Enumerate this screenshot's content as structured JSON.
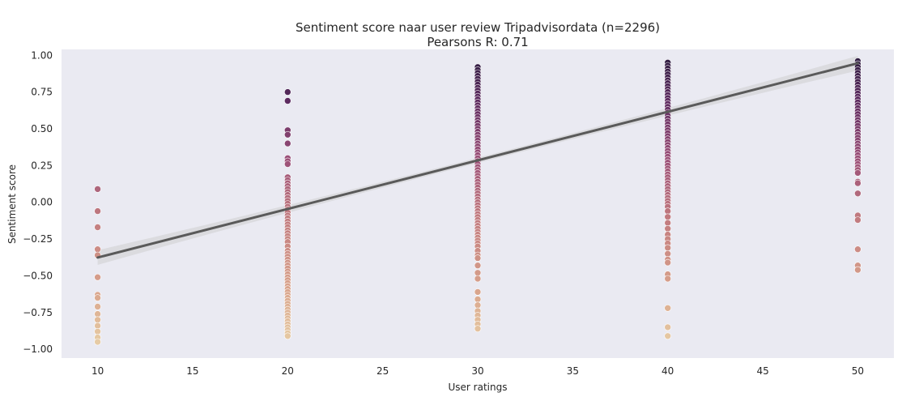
{
  "chart_data": {
    "type": "scatter",
    "title": "Sentiment score naar user review Tripadvisordata  (n=2296)",
    "subtitle": "Pearsons R: 0.71",
    "xlabel": "User ratings",
    "ylabel": "Sentiment score",
    "xlim": [
      8.1,
      51.9
    ],
    "ylim": [
      -1.06,
      1.04
    ],
    "x_ticks": [
      10,
      15,
      20,
      25,
      30,
      35,
      40,
      45,
      50
    ],
    "x_tick_labels": [
      "10",
      "15",
      "20",
      "25",
      "30",
      "35",
      "40",
      "45",
      "50"
    ],
    "y_ticks": [
      1.0,
      0.75,
      0.5,
      0.25,
      0.0,
      -0.25,
      -0.5,
      -0.75,
      -1.0
    ],
    "y_tick_labels": [
      "1.00",
      "0.75",
      "0.50",
      "0.25",
      "0.00",
      "−0.25",
      "−0.50",
      "−0.75",
      "−1.00"
    ],
    "grid": false,
    "legend": "none",
    "colors": {
      "background": "#eaeaf2",
      "regression_line": "#5a5a5a",
      "confidence_band": "#d8d8dc",
      "palette_low": "#e8d1a8",
      "palette_high": "#2a1b3d"
    },
    "points": [
      {
        "x": 10,
        "y": 0.09
      },
      {
        "x": 10,
        "y": -0.06
      },
      {
        "x": 10,
        "y": -0.17
      },
      {
        "x": 10,
        "y": -0.32
      },
      {
        "x": 10,
        "y": -0.36
      },
      {
        "x": 10,
        "y": -0.51
      },
      {
        "x": 10,
        "y": -0.63
      },
      {
        "x": 10,
        "y": -0.65
      },
      {
        "x": 10,
        "y": -0.71
      },
      {
        "x": 10,
        "y": -0.76
      },
      {
        "x": 10,
        "y": -0.8
      },
      {
        "x": 10,
        "y": -0.84
      },
      {
        "x": 10,
        "y": -0.88
      },
      {
        "x": 10,
        "y": -0.92
      },
      {
        "x": 10,
        "y": -0.95
      },
      {
        "x": 20,
        "y": 0.75
      },
      {
        "x": 20,
        "y": 0.69
      },
      {
        "x": 20,
        "y": 0.49
      },
      {
        "x": 20,
        "y": 0.46
      },
      {
        "x": 20,
        "y": 0.4
      },
      {
        "x": 20,
        "y": 0.3
      },
      {
        "x": 20,
        "y": 0.28
      },
      {
        "x": 20,
        "y": 0.26
      },
      {
        "x": 20,
        "y": 0.17
      },
      {
        "x": 20,
        "y": 0.15
      },
      {
        "x": 20,
        "y": 0.13
      },
      {
        "x": 20,
        "y": 0.11
      },
      {
        "x": 20,
        "y": 0.09
      },
      {
        "x": 20,
        "y": 0.07
      },
      {
        "x": 20,
        "y": 0.05
      },
      {
        "x": 20,
        "y": 0.03
      },
      {
        "x": 20,
        "y": 0.01
      },
      {
        "x": 20,
        "y": -0.01
      },
      {
        "x": 20,
        "y": -0.03
      },
      {
        "x": 20,
        "y": -0.05
      },
      {
        "x": 20,
        "y": -0.07
      },
      {
        "x": 20,
        "y": -0.09
      },
      {
        "x": 20,
        "y": -0.11
      },
      {
        "x": 20,
        "y": -0.13
      },
      {
        "x": 20,
        "y": -0.15
      },
      {
        "x": 20,
        "y": -0.17
      },
      {
        "x": 20,
        "y": -0.19
      },
      {
        "x": 20,
        "y": -0.21
      },
      {
        "x": 20,
        "y": -0.23
      },
      {
        "x": 20,
        "y": -0.25
      },
      {
        "x": 20,
        "y": -0.27
      },
      {
        "x": 20,
        "y": -0.3
      },
      {
        "x": 20,
        "y": -0.33
      },
      {
        "x": 20,
        "y": -0.35
      },
      {
        "x": 20,
        "y": -0.37
      },
      {
        "x": 20,
        "y": -0.39
      },
      {
        "x": 20,
        "y": -0.41
      },
      {
        "x": 20,
        "y": -0.43
      },
      {
        "x": 20,
        "y": -0.45
      },
      {
        "x": 20,
        "y": -0.47
      },
      {
        "x": 20,
        "y": -0.49
      },
      {
        "x": 20,
        "y": -0.51
      },
      {
        "x": 20,
        "y": -0.53
      },
      {
        "x": 20,
        "y": -0.55
      },
      {
        "x": 20,
        "y": -0.57
      },
      {
        "x": 20,
        "y": -0.59
      },
      {
        "x": 20,
        "y": -0.61
      },
      {
        "x": 20,
        "y": -0.63
      },
      {
        "x": 20,
        "y": -0.65
      },
      {
        "x": 20,
        "y": -0.67
      },
      {
        "x": 20,
        "y": -0.69
      },
      {
        "x": 20,
        "y": -0.71
      },
      {
        "x": 20,
        "y": -0.73
      },
      {
        "x": 20,
        "y": -0.75
      },
      {
        "x": 20,
        "y": -0.77
      },
      {
        "x": 20,
        "y": -0.79
      },
      {
        "x": 20,
        "y": -0.81
      },
      {
        "x": 20,
        "y": -0.83
      },
      {
        "x": 20,
        "y": -0.85
      },
      {
        "x": 20,
        "y": -0.87
      },
      {
        "x": 20,
        "y": -0.89
      },
      {
        "x": 20,
        "y": -0.91
      },
      {
        "x": 30,
        "y": 0.92
      },
      {
        "x": 30,
        "y": 0.9
      },
      {
        "x": 30,
        "y": 0.88
      },
      {
        "x": 30,
        "y": 0.86
      },
      {
        "x": 30,
        "y": 0.84
      },
      {
        "x": 30,
        "y": 0.82
      },
      {
        "x": 30,
        "y": 0.8
      },
      {
        "x": 30,
        "y": 0.78
      },
      {
        "x": 30,
        "y": 0.76
      },
      {
        "x": 30,
        "y": 0.74
      },
      {
        "x": 30,
        "y": 0.72
      },
      {
        "x": 30,
        "y": 0.7
      },
      {
        "x": 30,
        "y": 0.68
      },
      {
        "x": 30,
        "y": 0.66
      },
      {
        "x": 30,
        "y": 0.64
      },
      {
        "x": 30,
        "y": 0.62
      },
      {
        "x": 30,
        "y": 0.6
      },
      {
        "x": 30,
        "y": 0.58
      },
      {
        "x": 30,
        "y": 0.56
      },
      {
        "x": 30,
        "y": 0.54
      },
      {
        "x": 30,
        "y": 0.52
      },
      {
        "x": 30,
        "y": 0.5
      },
      {
        "x": 30,
        "y": 0.48
      },
      {
        "x": 30,
        "y": 0.46
      },
      {
        "x": 30,
        "y": 0.44
      },
      {
        "x": 30,
        "y": 0.42
      },
      {
        "x": 30,
        "y": 0.4
      },
      {
        "x": 30,
        "y": 0.38
      },
      {
        "x": 30,
        "y": 0.36
      },
      {
        "x": 30,
        "y": 0.34
      },
      {
        "x": 30,
        "y": 0.32
      },
      {
        "x": 30,
        "y": 0.3
      },
      {
        "x": 30,
        "y": 0.28
      },
      {
        "x": 30,
        "y": 0.26
      },
      {
        "x": 30,
        "y": 0.24
      },
      {
        "x": 30,
        "y": 0.22
      },
      {
        "x": 30,
        "y": 0.2
      },
      {
        "x": 30,
        "y": 0.18
      },
      {
        "x": 30,
        "y": 0.16
      },
      {
        "x": 30,
        "y": 0.14
      },
      {
        "x": 30,
        "y": 0.12
      },
      {
        "x": 30,
        "y": 0.1
      },
      {
        "x": 30,
        "y": 0.08
      },
      {
        "x": 30,
        "y": 0.06
      },
      {
        "x": 30,
        "y": 0.04
      },
      {
        "x": 30,
        "y": 0.02
      },
      {
        "x": 30,
        "y": 0.0
      },
      {
        "x": 30,
        "y": -0.02
      },
      {
        "x": 30,
        "y": -0.04
      },
      {
        "x": 30,
        "y": -0.06
      },
      {
        "x": 30,
        "y": -0.08
      },
      {
        "x": 30,
        "y": -0.1
      },
      {
        "x": 30,
        "y": -0.12
      },
      {
        "x": 30,
        "y": -0.14
      },
      {
        "x": 30,
        "y": -0.16
      },
      {
        "x": 30,
        "y": -0.18
      },
      {
        "x": 30,
        "y": -0.2
      },
      {
        "x": 30,
        "y": -0.22
      },
      {
        "x": 30,
        "y": -0.24
      },
      {
        "x": 30,
        "y": -0.26
      },
      {
        "x": 30,
        "y": -0.28
      },
      {
        "x": 30,
        "y": -0.3
      },
      {
        "x": 30,
        "y": -0.33
      },
      {
        "x": 30,
        "y": -0.36
      },
      {
        "x": 30,
        "y": -0.38
      },
      {
        "x": 30,
        "y": -0.43
      },
      {
        "x": 30,
        "y": -0.48
      },
      {
        "x": 30,
        "y": -0.52
      },
      {
        "x": 30,
        "y": -0.61
      },
      {
        "x": 30,
        "y": -0.66
      },
      {
        "x": 30,
        "y": -0.7
      },
      {
        "x": 30,
        "y": -0.74
      },
      {
        "x": 30,
        "y": -0.77
      },
      {
        "x": 30,
        "y": -0.8
      },
      {
        "x": 30,
        "y": -0.83
      },
      {
        "x": 30,
        "y": -0.86
      },
      {
        "x": 40,
        "y": 0.95
      },
      {
        "x": 40,
        "y": 0.93
      },
      {
        "x": 40,
        "y": 0.91
      },
      {
        "x": 40,
        "y": 0.89
      },
      {
        "x": 40,
        "y": 0.87
      },
      {
        "x": 40,
        "y": 0.85
      },
      {
        "x": 40,
        "y": 0.83
      },
      {
        "x": 40,
        "y": 0.81
      },
      {
        "x": 40,
        "y": 0.79
      },
      {
        "x": 40,
        "y": 0.77
      },
      {
        "x": 40,
        "y": 0.75
      },
      {
        "x": 40,
        "y": 0.73
      },
      {
        "x": 40,
        "y": 0.71
      },
      {
        "x": 40,
        "y": 0.69
      },
      {
        "x": 40,
        "y": 0.67
      },
      {
        "x": 40,
        "y": 0.65
      },
      {
        "x": 40,
        "y": 0.63
      },
      {
        "x": 40,
        "y": 0.61
      },
      {
        "x": 40,
        "y": 0.59
      },
      {
        "x": 40,
        "y": 0.57
      },
      {
        "x": 40,
        "y": 0.55
      },
      {
        "x": 40,
        "y": 0.53
      },
      {
        "x": 40,
        "y": 0.51
      },
      {
        "x": 40,
        "y": 0.49
      },
      {
        "x": 40,
        "y": 0.47
      },
      {
        "x": 40,
        "y": 0.45
      },
      {
        "x": 40,
        "y": 0.43
      },
      {
        "x": 40,
        "y": 0.41
      },
      {
        "x": 40,
        "y": 0.39
      },
      {
        "x": 40,
        "y": 0.37
      },
      {
        "x": 40,
        "y": 0.35
      },
      {
        "x": 40,
        "y": 0.33
      },
      {
        "x": 40,
        "y": 0.31
      },
      {
        "x": 40,
        "y": 0.29
      },
      {
        "x": 40,
        "y": 0.27
      },
      {
        "x": 40,
        "y": 0.25
      },
      {
        "x": 40,
        "y": 0.23
      },
      {
        "x": 40,
        "y": 0.21
      },
      {
        "x": 40,
        "y": 0.19
      },
      {
        "x": 40,
        "y": 0.17
      },
      {
        "x": 40,
        "y": 0.15
      },
      {
        "x": 40,
        "y": 0.13
      },
      {
        "x": 40,
        "y": 0.11
      },
      {
        "x": 40,
        "y": 0.09
      },
      {
        "x": 40,
        "y": 0.07
      },
      {
        "x": 40,
        "y": 0.05
      },
      {
        "x": 40,
        "y": 0.03
      },
      {
        "x": 40,
        "y": 0.01
      },
      {
        "x": 40,
        "y": -0.01
      },
      {
        "x": 40,
        "y": -0.03
      },
      {
        "x": 40,
        "y": -0.06
      },
      {
        "x": 40,
        "y": -0.1
      },
      {
        "x": 40,
        "y": -0.14
      },
      {
        "x": 40,
        "y": -0.18
      },
      {
        "x": 40,
        "y": -0.22
      },
      {
        "x": 40,
        "y": -0.25
      },
      {
        "x": 40,
        "y": -0.28
      },
      {
        "x": 40,
        "y": -0.31
      },
      {
        "x": 40,
        "y": -0.35
      },
      {
        "x": 40,
        "y": -0.39
      },
      {
        "x": 40,
        "y": -0.41
      },
      {
        "x": 40,
        "y": -0.49
      },
      {
        "x": 40,
        "y": -0.52
      },
      {
        "x": 40,
        "y": -0.72
      },
      {
        "x": 40,
        "y": -0.85
      },
      {
        "x": 40,
        "y": -0.91
      },
      {
        "x": 50,
        "y": 0.96
      },
      {
        "x": 50,
        "y": 0.94
      },
      {
        "x": 50,
        "y": 0.92
      },
      {
        "x": 50,
        "y": 0.9
      },
      {
        "x": 50,
        "y": 0.88
      },
      {
        "x": 50,
        "y": 0.86
      },
      {
        "x": 50,
        "y": 0.84
      },
      {
        "x": 50,
        "y": 0.82
      },
      {
        "x": 50,
        "y": 0.8
      },
      {
        "x": 50,
        "y": 0.78
      },
      {
        "x": 50,
        "y": 0.76
      },
      {
        "x": 50,
        "y": 0.74
      },
      {
        "x": 50,
        "y": 0.72
      },
      {
        "x": 50,
        "y": 0.7
      },
      {
        "x": 50,
        "y": 0.68
      },
      {
        "x": 50,
        "y": 0.66
      },
      {
        "x": 50,
        "y": 0.64
      },
      {
        "x": 50,
        "y": 0.62
      },
      {
        "x": 50,
        "y": 0.6
      },
      {
        "x": 50,
        "y": 0.58
      },
      {
        "x": 50,
        "y": 0.56
      },
      {
        "x": 50,
        "y": 0.54
      },
      {
        "x": 50,
        "y": 0.52
      },
      {
        "x": 50,
        "y": 0.5
      },
      {
        "x": 50,
        "y": 0.48
      },
      {
        "x": 50,
        "y": 0.46
      },
      {
        "x": 50,
        "y": 0.44
      },
      {
        "x": 50,
        "y": 0.42
      },
      {
        "x": 50,
        "y": 0.4
      },
      {
        "x": 50,
        "y": 0.38
      },
      {
        "x": 50,
        "y": 0.36
      },
      {
        "x": 50,
        "y": 0.34
      },
      {
        "x": 50,
        "y": 0.32
      },
      {
        "x": 50,
        "y": 0.3
      },
      {
        "x": 50,
        "y": 0.28
      },
      {
        "x": 50,
        "y": 0.26
      },
      {
        "x": 50,
        "y": 0.24
      },
      {
        "x": 50,
        "y": 0.22
      },
      {
        "x": 50,
        "y": 0.2
      },
      {
        "x": 50,
        "y": 0.14
      },
      {
        "x": 50,
        "y": 0.13
      },
      {
        "x": 50,
        "y": 0.06
      },
      {
        "x": 50,
        "y": -0.09
      },
      {
        "x": 50,
        "y": -0.12
      },
      {
        "x": 50,
        "y": -0.32
      },
      {
        "x": 50,
        "y": -0.43
      },
      {
        "x": 50,
        "y": -0.46
      }
    ],
    "regression": {
      "x_start": 10,
      "y_start": -0.376,
      "x_end": 50,
      "y_end": 0.946,
      "ci_halfwidth_at_ends": 0.05,
      "ci_halfwidth_at_center": 0.018
    }
  }
}
